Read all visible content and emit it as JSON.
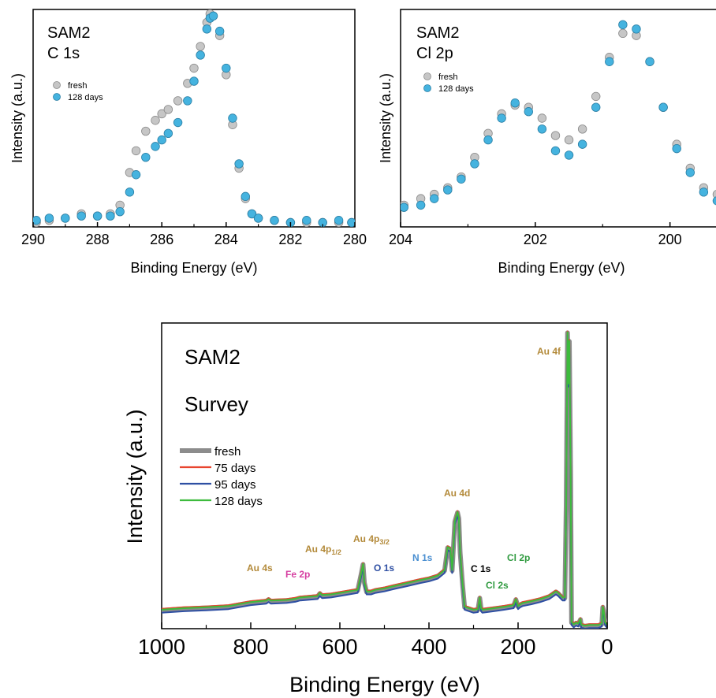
{
  "chart_data": [
    {
      "type": "scatter",
      "title": "SAM2",
      "subtitle": "C 1s",
      "xlabel": "Binding Energy (eV)",
      "ylabel": "Intensity (a.u.)",
      "xlim": [
        290,
        280
      ],
      "ylim": [
        0,
        1
      ],
      "x_reversed": true,
      "y_ticks_shown": false,
      "xticks": [
        290,
        288,
        286,
        284,
        282,
        280
      ],
      "xtick_labels": [
        "290",
        "288",
        "286",
        "284",
        "282",
        "280"
      ],
      "legend_position": "top-left",
      "series": [
        {
          "name": "fresh",
          "color": "#c6c6c6",
          "points": [
            [
              289.9,
              0.02
            ],
            [
              289.5,
              0.03
            ],
            [
              289,
              0.04
            ],
            [
              288.5,
              0.06
            ],
            [
              288,
              0.05
            ],
            [
              287.6,
              0.06
            ],
            [
              287.3,
              0.1
            ],
            [
              287,
              0.25
            ],
            [
              286.8,
              0.35
            ],
            [
              286.5,
              0.44
            ],
            [
              286.2,
              0.49
            ],
            [
              286,
              0.52
            ],
            [
              285.8,
              0.54
            ],
            [
              285.5,
              0.58
            ],
            [
              285.2,
              0.66
            ],
            [
              285,
              0.73
            ],
            [
              284.8,
              0.83
            ],
            [
              284.6,
              0.94
            ],
            [
              284.5,
              0.98
            ],
            [
              284.4,
              0.97
            ],
            [
              284.2,
              0.88
            ],
            [
              284,
              0.7
            ],
            [
              283.8,
              0.47
            ],
            [
              283.6,
              0.27
            ],
            [
              283.4,
              0.13
            ],
            [
              283.2,
              0.06
            ],
            [
              283,
              0.04
            ],
            [
              282.5,
              0.03
            ],
            [
              282,
              0.02
            ],
            [
              281.5,
              0.02
            ],
            [
              281,
              0.02
            ],
            [
              280.5,
              0.02
            ],
            [
              280.1,
              0.02
            ]
          ]
        },
        {
          "name": "128 days",
          "color": "#45b3df",
          "points": [
            [
              289.9,
              0.03
            ],
            [
              289.5,
              0.04
            ],
            [
              289,
              0.04
            ],
            [
              288.5,
              0.05
            ],
            [
              288,
              0.05
            ],
            [
              287.6,
              0.05
            ],
            [
              287.3,
              0.07
            ],
            [
              287,
              0.16
            ],
            [
              286.8,
              0.24
            ],
            [
              286.5,
              0.32
            ],
            [
              286.2,
              0.37
            ],
            [
              286,
              0.4
            ],
            [
              285.8,
              0.43
            ],
            [
              285.5,
              0.48
            ],
            [
              285.2,
              0.58
            ],
            [
              285,
              0.67
            ],
            [
              284.8,
              0.79
            ],
            [
              284.6,
              0.91
            ],
            [
              284.5,
              0.96
            ],
            [
              284.4,
              0.97
            ],
            [
              284.2,
              0.9
            ],
            [
              284,
              0.73
            ],
            [
              283.8,
              0.5
            ],
            [
              283.6,
              0.29
            ],
            [
              283.4,
              0.14
            ],
            [
              283.2,
              0.06
            ],
            [
              283,
              0.04
            ],
            [
              282.5,
              0.03
            ],
            [
              282,
              0.02
            ],
            [
              281.5,
              0.03
            ],
            [
              281,
              0.02
            ],
            [
              280.5,
              0.03
            ],
            [
              280.1,
              0.02
            ]
          ]
        }
      ]
    },
    {
      "type": "scatter",
      "title": "SAM2",
      "subtitle": "Cl 2p",
      "xlabel": "Binding Energy (eV)",
      "ylabel": "Intensity (a.u.)",
      "xlim": [
        204,
        199.2
      ],
      "ylim": [
        0,
        1
      ],
      "x_reversed": true,
      "y_ticks_shown": false,
      "xticks": [
        204,
        202,
        200
      ],
      "xtick_labels": [
        "204",
        "202",
        "200"
      ],
      "legend_position": "top-left",
      "series": [
        {
          "name": "fresh",
          "color": "#c6c6c6",
          "points": [
            [
              203.95,
              0.1
            ],
            [
              203.7,
              0.13
            ],
            [
              203.5,
              0.15
            ],
            [
              203.3,
              0.18
            ],
            [
              203.1,
              0.23
            ],
            [
              202.9,
              0.32
            ],
            [
              202.7,
              0.43
            ],
            [
              202.5,
              0.52
            ],
            [
              202.3,
              0.56
            ],
            [
              202.1,
              0.55
            ],
            [
              201.9,
              0.5
            ],
            [
              201.7,
              0.42
            ],
            [
              201.5,
              0.4
            ],
            [
              201.3,
              0.45
            ],
            [
              201.1,
              0.6
            ],
            [
              200.9,
              0.78
            ],
            [
              200.7,
              0.89
            ],
            [
              200.5,
              0.88
            ],
            [
              200.3,
              0.76
            ],
            [
              200.1,
              0.55
            ],
            [
              199.9,
              0.38
            ],
            [
              199.7,
              0.27
            ],
            [
              199.5,
              0.18
            ],
            [
              199.3,
              0.15
            ]
          ]
        },
        {
          "name": "128 days",
          "color": "#45b3df",
          "points": [
            [
              203.95,
              0.09
            ],
            [
              203.7,
              0.1
            ],
            [
              203.5,
              0.13
            ],
            [
              203.3,
              0.17
            ],
            [
              203.1,
              0.22
            ],
            [
              202.9,
              0.29
            ],
            [
              202.7,
              0.4
            ],
            [
              202.5,
              0.5
            ],
            [
              202.3,
              0.57
            ],
            [
              202.1,
              0.53
            ],
            [
              201.9,
              0.45
            ],
            [
              201.7,
              0.35
            ],
            [
              201.5,
              0.33
            ],
            [
              201.3,
              0.38
            ],
            [
              201.1,
              0.55
            ],
            [
              200.9,
              0.76
            ],
            [
              200.7,
              0.93
            ],
            [
              200.5,
              0.91
            ],
            [
              200.3,
              0.76
            ],
            [
              200.1,
              0.55
            ],
            [
              199.9,
              0.36
            ],
            [
              199.7,
              0.25
            ],
            [
              199.5,
              0.16
            ],
            [
              199.3,
              0.12
            ]
          ]
        }
      ]
    },
    {
      "type": "line",
      "title": "SAM2",
      "subtitle": "Survey",
      "xlabel": "Binding Energy (eV)",
      "ylabel": "Intensity (a.u.)",
      "xlim": [
        1000,
        0
      ],
      "ylim": [
        0,
        1
      ],
      "x_reversed": true,
      "y_ticks_shown": false,
      "xticks": [
        1000,
        800,
        600,
        400,
        200,
        0
      ],
      "xtick_labels": [
        "1000",
        "800",
        "600",
        "400",
        "200",
        "0"
      ],
      "legend_position": "middle-left",
      "series": [
        {
          "name": "fresh",
          "color": "#8c8c8c",
          "line_width": 6
        },
        {
          "name": "75 days",
          "color": "#e8452f",
          "line_width": 2
        },
        {
          "name": "95 days",
          "color": "#2e4fa3",
          "line_width": 2
        },
        {
          "name": "128 days",
          "color": "#3dbb3d",
          "line_width": 2
        }
      ],
      "survey_x": [
        1000,
        950,
        900,
        850,
        800,
        765,
        760,
        755,
        720,
        700,
        690,
        650,
        645,
        640,
        620,
        600,
        560,
        552,
        548,
        545,
        540,
        530,
        520,
        500,
        480,
        450,
        420,
        400,
        380,
        365,
        358,
        352,
        348,
        342,
        336,
        333,
        330,
        325,
        320,
        300,
        290,
        286,
        283,
        280,
        270,
        250,
        230,
        210,
        205,
        200,
        195,
        190,
        170,
        150,
        130,
        115,
        110,
        100,
        95,
        92,
        89,
        87,
        85,
        82,
        80,
        75,
        70,
        65,
        60,
        58,
        55,
        50,
        40,
        30,
        20,
        12,
        10,
        8,
        5,
        0
      ],
      "survey_intensity": [
        0.06,
        0.065,
        0.068,
        0.072,
        0.085,
        0.09,
        0.095,
        0.09,
        0.092,
        0.096,
        0.1,
        0.105,
        0.115,
        0.108,
        0.11,
        0.115,
        0.125,
        0.18,
        0.21,
        0.15,
        0.12,
        0.12,
        0.125,
        0.13,
        0.137,
        0.147,
        0.157,
        0.163,
        0.172,
        0.19,
        0.265,
        0.26,
        0.19,
        0.35,
        0.38,
        0.36,
        0.25,
        0.15,
        0.07,
        0.06,
        0.062,
        0.1,
        0.065,
        0.06,
        0.062,
        0.066,
        0.07,
        0.075,
        0.095,
        0.072,
        0.078,
        0.082,
        0.088,
        0.095,
        0.105,
        0.12,
        0.115,
        0.1,
        0.1,
        0.4,
        0.968,
        0.8,
        0.94,
        0.5,
        0.02,
        0.012,
        0.018,
        0.015,
        0.03,
        0.01,
        0.01,
        0.008,
        0.01,
        0.01,
        0.01,
        0.015,
        0.07,
        0.06,
        0.02,
        0.01
      ],
      "survey_offsets": [
        0,
        0.005,
        -0.008,
        0.002
      ]
    }
  ],
  "survey_labels": [
    {
      "text": "Au 4f",
      "color": "#b38a3a"
    },
    {
      "text": "Au 4d",
      "color": "#b38a3a"
    },
    {
      "text": "Au 4p",
      "sub": "3/2",
      "color": "#b38a3a"
    },
    {
      "text": "Au 4p",
      "sub": "1/2",
      "color": "#b38a3a"
    },
    {
      "text": "Au 4s",
      "color": "#b38a3a"
    },
    {
      "text": "Fe 2p",
      "color": "#d63fa1"
    },
    {
      "text": "O 1s",
      "color": "#2e4fa3"
    },
    {
      "text": "N 1s",
      "color": "#4a8fd1"
    },
    {
      "text": "C 1s",
      "color": "#000000"
    },
    {
      "text": "Cl 2p",
      "color": "#2f9a3f"
    },
    {
      "text": "Cl 2s",
      "color": "#2f9a3f"
    }
  ]
}
